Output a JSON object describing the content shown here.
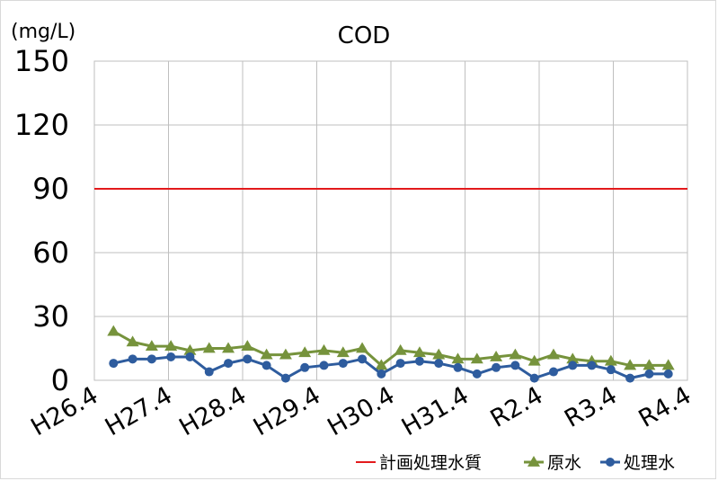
{
  "chart_data": {
    "type": "line",
    "title": "COD",
    "unit_label": "(mg/L)",
    "ylim": [
      0,
      150
    ],
    "yticks": [
      "0",
      "30",
      "60",
      "90",
      "120",
      "150"
    ],
    "xtick_labels": [
      "H26.4",
      "H27.4",
      "H28.4",
      "H29.4",
      "H30.4",
      "H31.4",
      "R2.4",
      "R3.4",
      "R4.4"
    ],
    "grid": true,
    "legend_position": "bottom-right",
    "x_count": 32,
    "series": [
      {
        "name": "計画処理水質",
        "color": "#e31a1c",
        "marker": "none",
        "values": [
          90,
          90
        ]
      },
      {
        "name": "原水",
        "color": "#76933c",
        "marker": "triangle",
        "values": [
          23,
          18,
          16,
          16,
          14,
          15,
          15,
          16,
          12,
          12,
          13,
          14,
          13,
          15,
          7,
          14,
          13,
          12,
          10,
          10,
          11,
          12,
          9,
          12,
          10,
          9,
          9,
          7,
          7,
          7
        ]
      },
      {
        "name": "処理水",
        "color": "#2e5c9e",
        "marker": "circle",
        "values": [
          8,
          10,
          10,
          11,
          11,
          4,
          8,
          10,
          7,
          1,
          6,
          7,
          8,
          10,
          3,
          8,
          9,
          8,
          6,
          3,
          6,
          7,
          1,
          4,
          7,
          7,
          5,
          1,
          3,
          3
        ]
      }
    ]
  }
}
